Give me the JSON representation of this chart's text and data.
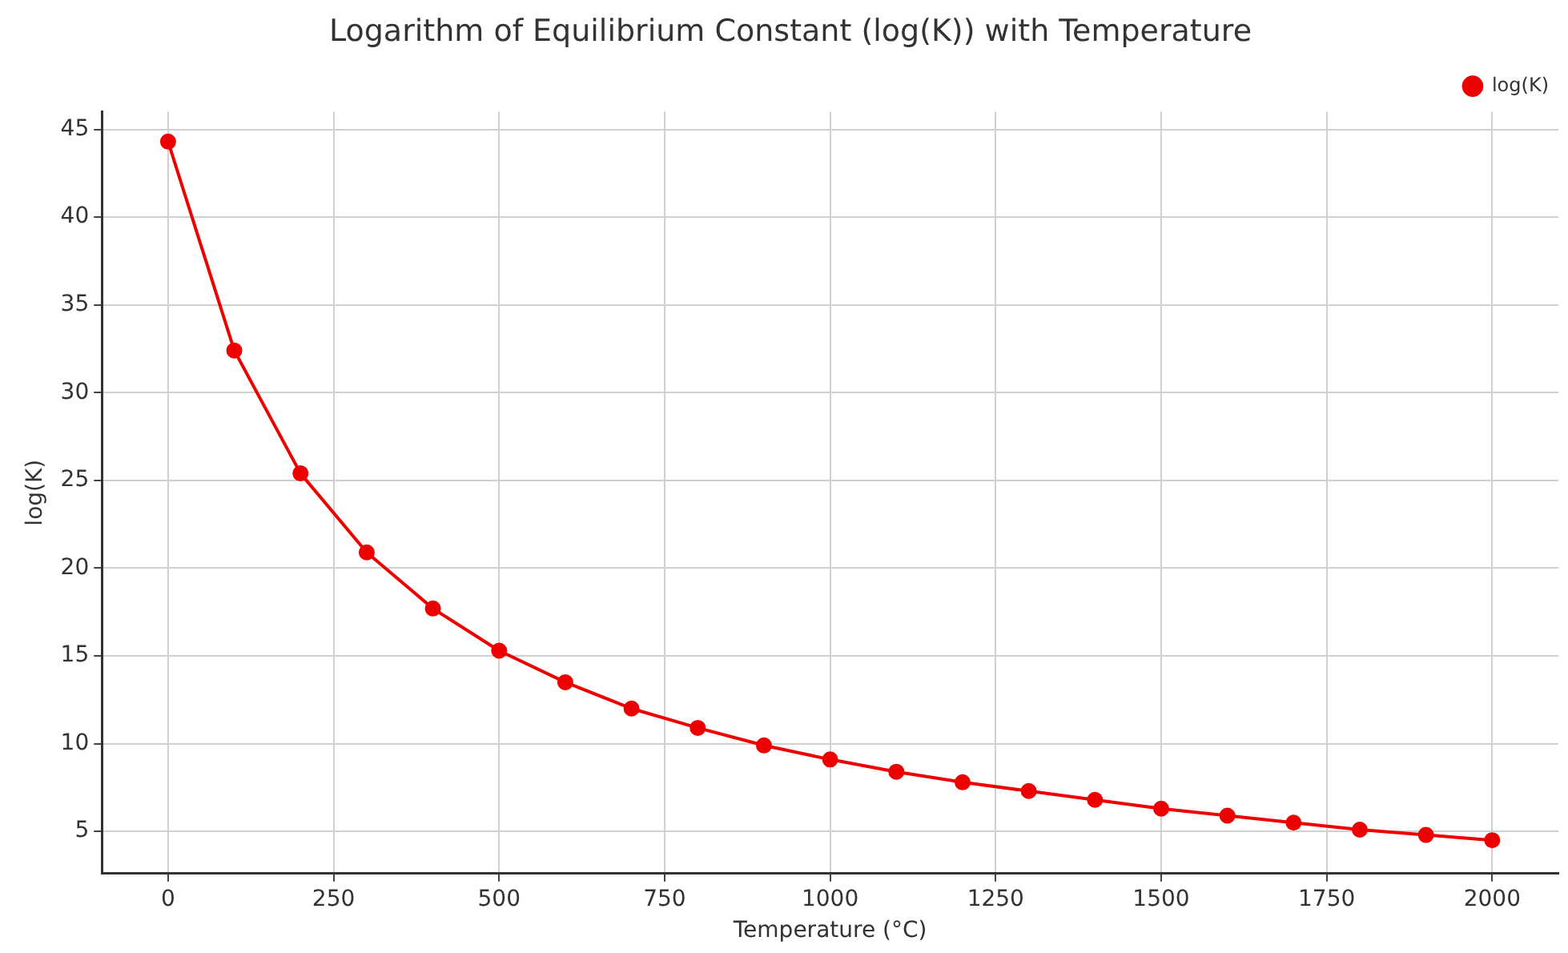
{
  "chart_data": {
    "type": "line",
    "title": "Logarithm of Equilibrium Constant (log(K)) with Temperature",
    "xlabel": "Temperature (°C)",
    "ylabel": "log(K)",
    "x": [
      0,
      100,
      200,
      300,
      400,
      500,
      600,
      700,
      800,
      900,
      1000,
      1100,
      1200,
      1300,
      1400,
      1500,
      1600,
      1700,
      1800,
      1900,
      2000
    ],
    "series": [
      {
        "name": "log(K)",
        "color": "#ee0000",
        "values": [
          44.3,
          32.4,
          25.4,
          20.9,
          17.7,
          15.3,
          13.5,
          12.0,
          10.9,
          9.9,
          9.1,
          8.4,
          7.8,
          7.3,
          6.8,
          6.3,
          5.9,
          5.5,
          5.1,
          4.8,
          4.5
        ]
      }
    ],
    "xlim": [
      -100,
      2100
    ],
    "xticks": [
      0,
      250,
      500,
      750,
      1000,
      1250,
      1500,
      1750,
      2000
    ],
    "ylim": [
      2.6,
      46
    ],
    "yticks": [
      5,
      10,
      15,
      20,
      25,
      30,
      35,
      40,
      45
    ],
    "grid": true,
    "legend": "top right",
    "marker": "circle",
    "line_style": "solid"
  }
}
